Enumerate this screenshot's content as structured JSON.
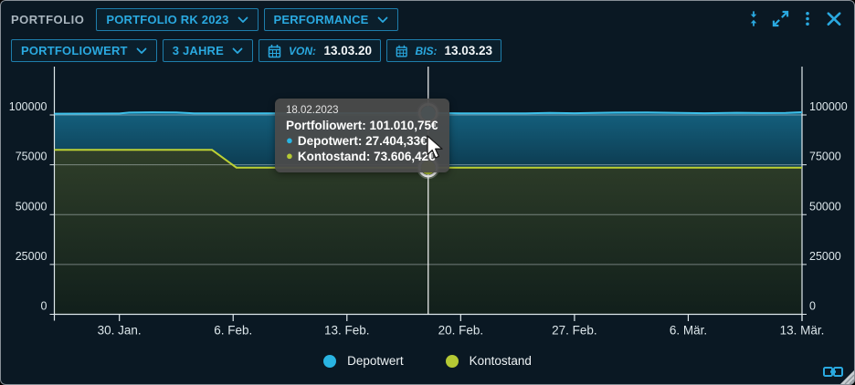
{
  "header": {
    "title": "PORTFOLIO",
    "portfolio_select": "PORTFOLIO RK 2023",
    "view_select": "PERFORMANCE"
  },
  "toolbar": {
    "metric_select": "PORTFOLIOWERT",
    "range_select": "3 JAHRE",
    "von_label": "VON:",
    "von_value": "13.03.20",
    "bis_label": "BIS:",
    "bis_value": "13.03.23"
  },
  "tooltip": {
    "date": "18.02.2023",
    "portfolio_text": "Portfoliowert: 101.010,75€",
    "depotwert_text": "Depotwert: 27.404,33€",
    "kontostand_text": "Kontostand: 73.606,42€"
  },
  "legend": [
    {
      "label": "Depotwert",
      "color": "#29b4e2"
    },
    {
      "label": "Kontostand",
      "color": "#b5c934"
    }
  ],
  "colors": {
    "accent": "#2aa9e0",
    "depot": "#29b4e2",
    "konto": "#b5c934",
    "background": "#0a1823",
    "axis": "#dfe8ec"
  },
  "chart_data": {
    "type": "area",
    "stacked": true,
    "title": "",
    "xlabel": "",
    "ylabel": "",
    "x_unit": "days from 26.01.2023",
    "x_range_days": 46,
    "ylim": [
      0,
      124000
    ],
    "grid": true,
    "legend_position": "bottom",
    "y_ticks": [
      0,
      25000,
      50000,
      75000,
      100000
    ],
    "x_ticks": [
      {
        "day": 4,
        "label": "30. Jan."
      },
      {
        "day": 11,
        "label": "6. Feb."
      },
      {
        "day": 18,
        "label": "13. Feb."
      },
      {
        "day": 25,
        "label": "20. Feb."
      },
      {
        "day": 32,
        "label": "27. Feb."
      },
      {
        "day": 39,
        "label": "6. Mär."
      },
      {
        "day": 46,
        "label": "13. Mär."
      }
    ],
    "series": [
      {
        "name": "Kontostand",
        "color": "#bdd134",
        "fill": [
          "#2f3e29",
          "#111f1b"
        ],
        "points": [
          [
            0,
            82470
          ],
          [
            9.7,
            82470
          ],
          [
            11.2,
            73606.42
          ],
          [
            46,
            73606.42
          ]
        ]
      },
      {
        "name": "Portfoliowert (Depotwert + Kontostand)",
        "color": "#3cc0ea",
        "fill": [
          "#14607e",
          "#0d3c51"
        ],
        "points": [
          [
            0,
            100650
          ],
          [
            2,
            100680
          ],
          [
            4,
            100750
          ],
          [
            4.6,
            101200
          ],
          [
            6,
            101350
          ],
          [
            7.5,
            101280
          ],
          [
            8.6,
            100820
          ],
          [
            12,
            100830
          ],
          [
            16,
            100860
          ],
          [
            20,
            100900
          ],
          [
            23,
            101010.75
          ],
          [
            25,
            100840
          ],
          [
            29,
            100800
          ],
          [
            30.5,
            101050
          ],
          [
            32,
            100860
          ],
          [
            34.5,
            101180
          ],
          [
            36.5,
            101300
          ],
          [
            38.5,
            101050
          ],
          [
            40,
            100880
          ],
          [
            42,
            101120
          ],
          [
            43.5,
            100950
          ],
          [
            45,
            101000
          ],
          [
            46,
            101380
          ]
        ]
      }
    ],
    "highlight": {
      "day": 23,
      "date": "18.02.2023",
      "portfoliowert": 101010.75,
      "depotwert": 27404.33,
      "kontostand": 73606.42
    }
  }
}
